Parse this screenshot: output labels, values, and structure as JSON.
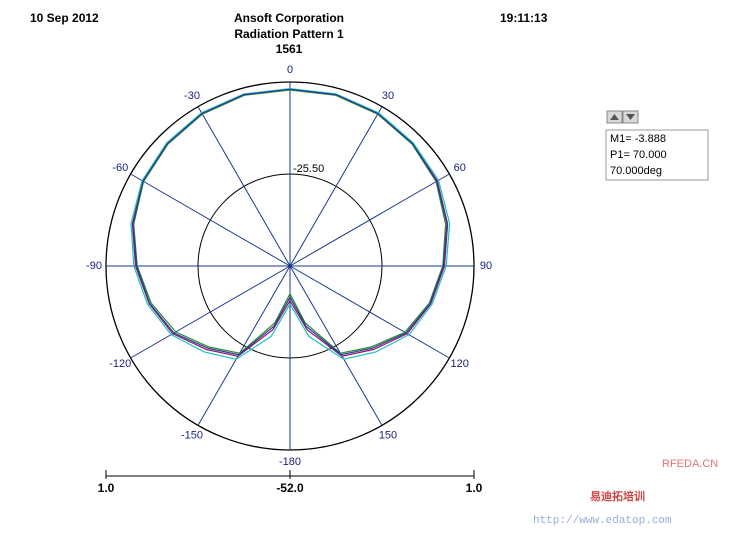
{
  "header": {
    "date": "10 Sep 2012",
    "company": "Ansoft Corporation",
    "time": "19:11:13"
  },
  "chart_data": {
    "type": "polar",
    "title": "Radiation Pattern 1",
    "subtitle": "1561",
    "theta": [
      -180,
      -165,
      -150,
      -135,
      -120,
      -105,
      -90,
      -75,
      -60,
      -45,
      -30,
      -15,
      0,
      15,
      30,
      45,
      60,
      75,
      90,
      105,
      120,
      135,
      150,
      165,
      180
    ],
    "series": [
      {
        "color": "#8b1a6b",
        "values": [
          -42,
          -33,
          -22,
          -18,
          -13,
          -10,
          -7.5,
          -5,
          -3,
          -2,
          -1.2,
          -0.8,
          -1,
          -0.8,
          -1.2,
          -2,
          -3,
          -5,
          -7.5,
          -10,
          -13,
          -18,
          -22,
          -33,
          -42
        ]
      },
      {
        "color": "#20c0c0",
        "values": [
          -41,
          -31,
          -21,
          -17,
          -12.5,
          -9.5,
          -7,
          -4.6,
          -2.8,
          -1.8,
          -1,
          -0.7,
          -0.9,
          -0.7,
          -1,
          -1.8,
          -2.6,
          -4.4,
          -7,
          -9.6,
          -12.4,
          -17,
          -21,
          -31,
          -41
        ]
      },
      {
        "color": "#2e8b2e",
        "values": [
          -44,
          -35,
          -23,
          -19,
          -14,
          -10.6,
          -8,
          -5.4,
          -3.3,
          -2.3,
          -1.5,
          -1.1,
          -1.3,
          -1.1,
          -1.5,
          -2.3,
          -3.4,
          -5.6,
          -8,
          -10.5,
          -13.8,
          -19,
          -23,
          -35,
          -44
        ]
      },
      {
        "color": "#2a3a9a",
        "values": [
          -43,
          -34,
          -22.5,
          -18.5,
          -13.4,
          -10.2,
          -7.8,
          -5.2,
          -3.1,
          -2.1,
          -1.3,
          -0.9,
          -1.1,
          -0.9,
          -1.3,
          -2.1,
          -3.2,
          -5.2,
          -7.8,
          -10.2,
          -13.4,
          -18.5,
          -22.5,
          -34,
          -43
        ]
      }
    ],
    "rlim": [
      -52,
      1
    ],
    "rticks": [
      {
        "value": -25.5,
        "label": "-25.50"
      }
    ],
    "thetaticks": [
      0,
      30,
      60,
      90,
      120,
      150,
      -180,
      -150,
      -120,
      -90,
      -60,
      -30
    ],
    "raxis_ticks": [
      {
        "value": 1,
        "label": "1.0"
      },
      {
        "value": -52,
        "label": "-52.0"
      },
      {
        "value": 1,
        "label": "1.0"
      }
    ]
  },
  "marker_box": {
    "lines": [
      "M1= -3.888",
      "P1= 70.000",
      "70.000deg"
    ]
  },
  "watermark": {
    "site": "RFEDA.CN",
    "brand": "易迪拓培训",
    "url": "http://www.edatop.com"
  }
}
